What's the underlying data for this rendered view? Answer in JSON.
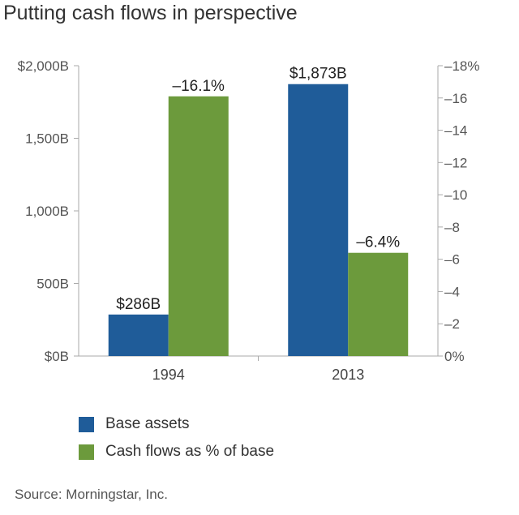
{
  "title": "Putting cash flows in perspective",
  "source": "Source: Morningstar, Inc.",
  "colors": {
    "base_assets": "#1f5c99",
    "cash_flows": "#6c9a3c",
    "axis": "#aaaaaa"
  },
  "legend": [
    {
      "label": "Base assets",
      "color": "#1f5c99"
    },
    {
      "label": "Cash flows as % of base",
      "color": "#6c9a3c"
    }
  ],
  "chart_data": {
    "type": "bar",
    "categories": [
      "1994",
      "2013"
    ],
    "series": [
      {
        "name": "Base assets",
        "axis": "left",
        "values": [
          286,
          1873
        ],
        "labels": [
          "$286B",
          "$1,873B"
        ]
      },
      {
        "name": "Cash flows as % of base",
        "axis": "right",
        "values": [
          -16.1,
          -6.4
        ],
        "labels": [
          "–16.1%",
          "–6.4%"
        ]
      }
    ],
    "left_axis": {
      "min": 0,
      "max": 2000,
      "ticks": [
        0,
        500,
        1000,
        1500,
        2000
      ],
      "tick_labels": [
        "$0B",
        "500B",
        "1,000B",
        "1,500B",
        "$2,000B"
      ]
    },
    "right_axis": {
      "min": 0,
      "max": -18,
      "inverted": true,
      "ticks": [
        0,
        -2,
        -4,
        -6,
        -8,
        -10,
        -12,
        -14,
        -16,
        -18
      ],
      "tick_labels": [
        "0%",
        "–2",
        "–4",
        "–6",
        "–8",
        "–10",
        "–12",
        "–14",
        "–16",
        "–18%"
      ]
    },
    "grid": false,
    "legend_position": "bottom-left"
  }
}
